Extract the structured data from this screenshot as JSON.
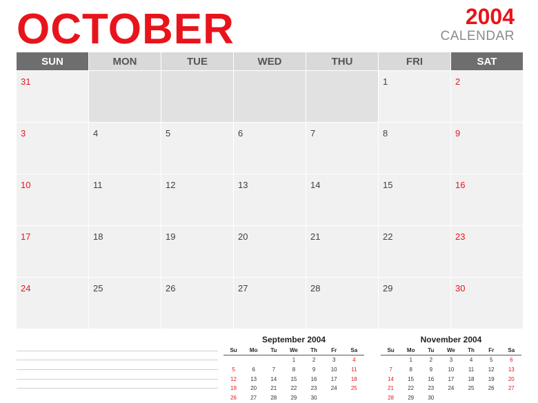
{
  "header": {
    "month": "OCTOBER",
    "year": "2004",
    "label": "CALENDAR"
  },
  "colors": {
    "accent": "#e8141c",
    "header_weekend": "#6e6e6e",
    "header_weekday": "#d9d9d9",
    "cell": "#f1f1f1",
    "cell_empty": "#e1e1e1"
  },
  "weekday_headers": [
    "SUN",
    "MON",
    "TUE",
    "WED",
    "THU",
    "FRI",
    "SAT"
  ],
  "weeks": [
    [
      "31",
      "",
      "",
      "",
      "",
      "1",
      "2"
    ],
    [
      "3",
      "4",
      "5",
      "6",
      "7",
      "8",
      "9"
    ],
    [
      "10",
      "11",
      "12",
      "13",
      "14",
      "15",
      "16"
    ],
    [
      "17",
      "18",
      "19",
      "20",
      "21",
      "22",
      "23"
    ],
    [
      "24",
      "25",
      "26",
      "27",
      "28",
      "29",
      "30"
    ]
  ],
  "notes_lines": 5,
  "mini_calendars": [
    {
      "title": "September 2004",
      "headers": [
        "Su",
        "Mo",
        "Tu",
        "We",
        "Th",
        "Fr",
        "Sa"
      ],
      "weeks": [
        [
          "",
          "",
          "",
          "1",
          "2",
          "3",
          "4"
        ],
        [
          "5",
          "6",
          "7",
          "8",
          "9",
          "10",
          "11"
        ],
        [
          "12",
          "13",
          "14",
          "15",
          "16",
          "17",
          "18"
        ],
        [
          "19",
          "20",
          "21",
          "22",
          "23",
          "24",
          "25"
        ],
        [
          "26",
          "27",
          "28",
          "29",
          "30",
          "",
          ""
        ]
      ]
    },
    {
      "title": "November 2004",
      "headers": [
        "Su",
        "Mo",
        "Tu",
        "We",
        "Th",
        "Fr",
        "Sa"
      ],
      "weeks": [
        [
          "",
          "1",
          "2",
          "3",
          "4",
          "5",
          "6"
        ],
        [
          "7",
          "8",
          "9",
          "10",
          "11",
          "12",
          "13"
        ],
        [
          "14",
          "15",
          "16",
          "17",
          "18",
          "19",
          "20"
        ],
        [
          "21",
          "22",
          "23",
          "24",
          "25",
          "26",
          "27"
        ],
        [
          "28",
          "29",
          "30",
          "",
          "",
          "",
          ""
        ]
      ]
    }
  ]
}
